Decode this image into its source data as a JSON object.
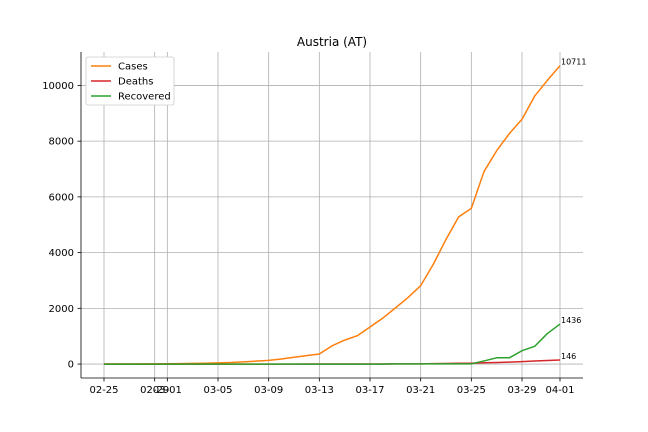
{
  "chart_data": {
    "type": "line",
    "title": "Austria (AT)",
    "xlabel": "",
    "ylabel": "",
    "x": [
      "02-25",
      "02-26",
      "02-27",
      "02-28",
      "02-29",
      "03-01",
      "03-02",
      "03-03",
      "03-04",
      "03-05",
      "03-06",
      "03-07",
      "03-08",
      "03-09",
      "03-10",
      "03-11",
      "03-12",
      "03-13",
      "03-14",
      "03-15",
      "03-16",
      "03-17",
      "03-18",
      "03-19",
      "03-20",
      "03-21",
      "03-22",
      "03-23",
      "03-24",
      "03-25",
      "03-26",
      "03-27",
      "03-28",
      "03-29",
      "03-30",
      "03-31",
      "04-01"
    ],
    "xticks": [
      "02-25",
      "02-29",
      "03-01",
      "03-05",
      "03-09",
      "03-13",
      "03-17",
      "03-21",
      "03-25",
      "03-29",
      "04-01"
    ],
    "tick_label_display": [
      "02-25",
      "02-29",
      "03-01",
      "03-05",
      "03-09",
      "03-13",
      "03-17",
      "03-21",
      "03-25",
      "03-29",
      "04-01"
    ],
    "yticks": [
      0,
      2000,
      4000,
      6000,
      8000,
      10000
    ],
    "ylim": [
      -500,
      11200
    ],
    "grid": true,
    "legend_position": "top-left",
    "series": [
      {
        "name": "Cases",
        "color": "#ff7f0e",
        "values": [
          2,
          2,
          3,
          5,
          9,
          10,
          18,
          24,
          29,
          41,
          55,
          79,
          104,
          131,
          182,
          246,
          302,
          361,
          655,
          860,
          1018,
          1332,
          1646,
          2013,
          2388,
          2814,
          3582,
          4474,
          5283,
          5588,
          6909,
          7657,
          8271,
          8788,
          9618,
          10180,
          10711
        ]
      },
      {
        "name": "Deaths",
        "color": "#d62728",
        "values": [
          0,
          0,
          0,
          0,
          0,
          0,
          0,
          0,
          0,
          0,
          0,
          0,
          0,
          0,
          0,
          0,
          1,
          1,
          1,
          1,
          1,
          3,
          4,
          6,
          6,
          8,
          16,
          21,
          28,
          30,
          49,
          58,
          68,
          86,
          108,
          128,
          146
        ]
      },
      {
        "name": "Recovered",
        "color": "#2ca02c",
        "values": [
          0,
          0,
          0,
          0,
          0,
          0,
          0,
          0,
          0,
          0,
          0,
          0,
          0,
          0,
          0,
          0,
          0,
          0,
          0,
          0,
          0,
          0,
          0,
          6,
          6,
          9,
          9,
          9,
          9,
          9,
          112,
          225,
          225,
          479,
          636,
          1095,
          1436
        ]
      }
    ],
    "end_labels": [
      "10711",
      "146",
      "1436"
    ]
  }
}
